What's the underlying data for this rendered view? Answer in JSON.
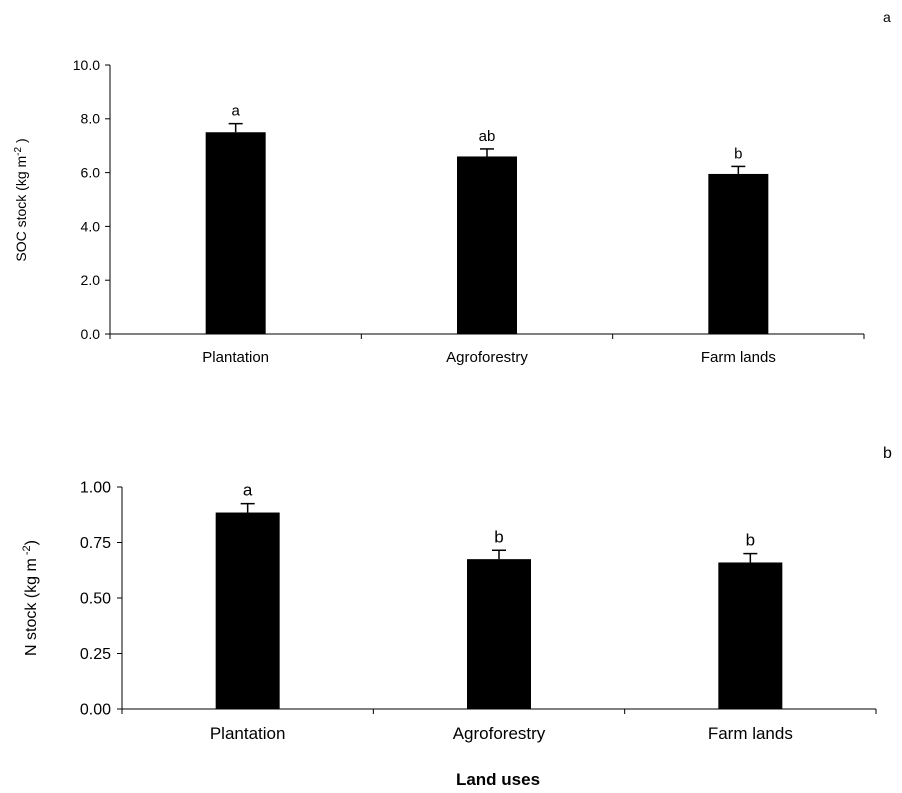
{
  "chart_data": [
    {
      "panel_letter": "a",
      "type": "bar",
      "categories": [
        "Plantation",
        "Agroforestry",
        "Farm lands"
      ],
      "values": [
        7.5,
        6.6,
        5.95
      ],
      "errors": [
        0.32,
        0.28,
        0.28
      ],
      "significance_letters": [
        "a",
        "ab",
        "b"
      ],
      "ylabel_main": "SOC stock (kg m",
      "ylabel_sup": "-2",
      "ylabel_end": " )",
      "ylim": [
        0,
        10
      ],
      "yticks": [
        "0.0",
        "2.0",
        "4.0",
        "6.0",
        "8.0",
        "10.0"
      ],
      "xlabel": "",
      "grid": false,
      "bar_color": "#000000"
    },
    {
      "panel_letter": "b",
      "type": "bar",
      "categories": [
        "Plantation",
        "Agroforestry",
        "Farm lands"
      ],
      "values": [
        0.885,
        0.675,
        0.66
      ],
      "errors": [
        0.04,
        0.04,
        0.04
      ],
      "significance_letters": [
        "a",
        "b",
        "b"
      ],
      "ylabel_main": "N stock (kg m",
      "ylabel_sup": " -2",
      "ylabel_end": ")",
      "ylim": [
        0,
        1
      ],
      "yticks": [
        "0.00",
        "0.25",
        "0.50",
        "0.75",
        "1.00"
      ],
      "xlabel": "Land uses",
      "grid": false,
      "bar_color": "#000000"
    }
  ]
}
